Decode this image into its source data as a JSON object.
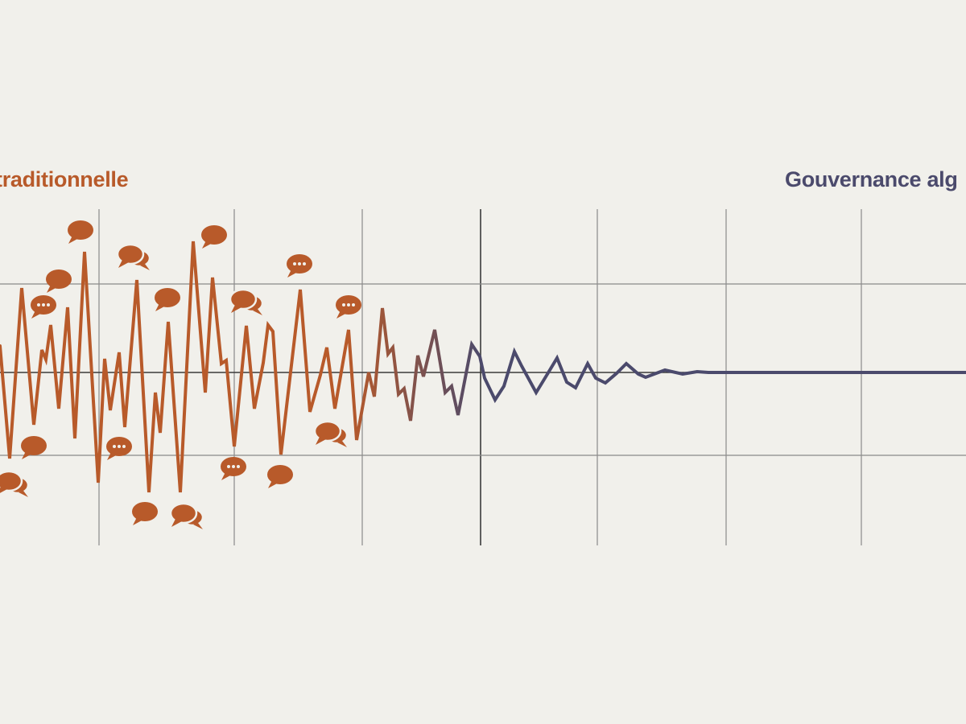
{
  "labels": {
    "left": "traditionnelle",
    "right": "Gouvernance alg"
  },
  "colors": {
    "background": "#f1f0eb",
    "traditional": "#b85a2a",
    "algorithmic": "#4b4a6c",
    "grid": "#8a8a8a",
    "axis": "#3a3a3a"
  },
  "icons": {
    "bubble_single": "speech-bubble-icon",
    "bubble_dots": "speech-bubble-ellipsis-icon",
    "bubble_double": "speech-bubbles-icon"
  }
}
